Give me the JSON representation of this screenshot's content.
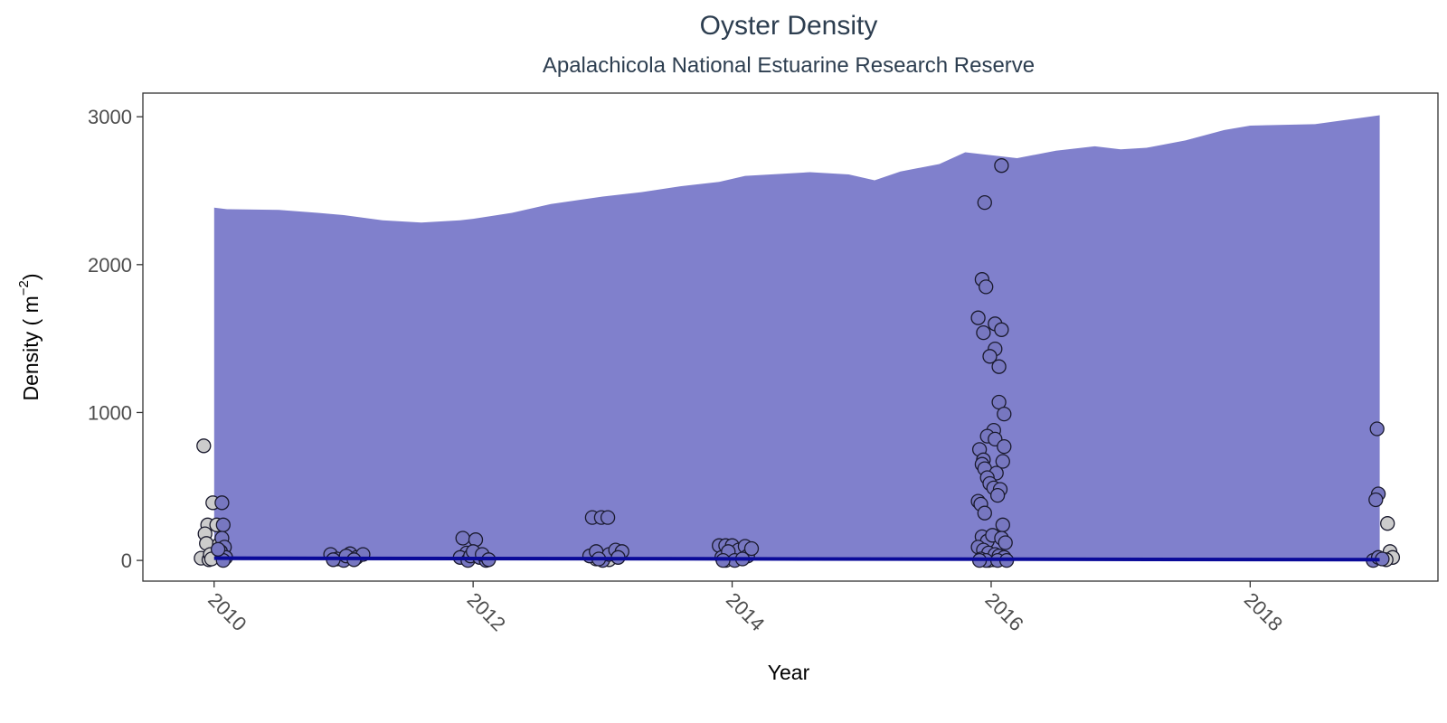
{
  "chart_data": {
    "type": "scatter",
    "title": "Oyster Density",
    "subtitle": "Apalachicola National Estuarine Research Reserve",
    "xlabel": "Year",
    "ylabel": "Density ( m",
    "ylabel_superscript": "−2",
    "ylabel_close": ")",
    "xlim": [
      2009.45,
      2019.45
    ],
    "ylim": [
      -140,
      3160
    ],
    "x_ticks": [
      2010,
      2012,
      2014,
      2016,
      2018
    ],
    "x_tick_labels": [
      "2010",
      "2012",
      "2014",
      "2016",
      "2018"
    ],
    "y_ticks": [
      0,
      1000,
      2000,
      3000
    ],
    "y_tick_labels": [
      "0",
      "1000",
      "2000",
      "3000"
    ],
    "grid": false,
    "legend": "none",
    "colors": {
      "band": "#8080cc",
      "trend": "#0a0a99",
      "point_fill_blue": "#7777c0",
      "point_fill_gray": "#cccccc",
      "point_stroke": "#1a1a2e",
      "frame": "#333333",
      "text": "#2d3e50"
    },
    "upper_band": {
      "x": [
        2010.0,
        2010.1,
        2010.5,
        2010.8,
        2011.0,
        2011.3,
        2011.6,
        2011.9,
        2012.0,
        2012.3,
        2012.6,
        2013.0,
        2013.3,
        2013.6,
        2013.9,
        2014.1,
        2014.3,
        2014.6,
        2014.9,
        2015.1,
        2015.3,
        2015.6,
        2015.8,
        2016.0,
        2016.2,
        2016.5,
        2016.8,
        2017.0,
        2017.2,
        2017.5,
        2017.8,
        2018.0,
        2018.5,
        2019.0
      ],
      "y": [
        2385,
        2375,
        2370,
        2350,
        2335,
        2300,
        2285,
        2300,
        2310,
        2350,
        2410,
        2460,
        2490,
        2530,
        2560,
        2600,
        2610,
        2625,
        2610,
        2570,
        2630,
        2680,
        2760,
        2740,
        2720,
        2770,
        2800,
        2780,
        2790,
        2840,
        2910,
        2940,
        2950,
        3010
      ]
    },
    "lower_band": {
      "x": [
        2010.0,
        2019.0
      ],
      "y": [
        0,
        0
      ]
    },
    "trend_line": {
      "x": [
        2010.0,
        2019.0
      ],
      "y": [
        15,
        5
      ]
    },
    "series": [
      {
        "name": "",
        "color": "#cccccc",
        "points": [
          [
            2009.92,
            775
          ],
          [
            2009.95,
            240
          ],
          [
            2009.93,
            180
          ],
          [
            2009.94,
            115
          ],
          [
            2009.9,
            15
          ],
          [
            2009.96,
            5
          ],
          [
            2009.97,
            40
          ],
          [
            2009.99,
            390
          ],
          [
            2010.02,
            240
          ],
          [
            2010.04,
            110
          ],
          [
            2010.05,
            30
          ],
          [
            2009.98,
            10
          ],
          [
            2012.95,
            10
          ],
          [
            2013.05,
            5
          ],
          [
            2013.95,
            0
          ],
          [
            2014.0,
            30
          ],
          [
            2016.02,
            5
          ],
          [
            2015.98,
            0
          ],
          [
            2019.06,
            250
          ],
          [
            2019.08,
            60
          ],
          [
            2019.1,
            20
          ],
          [
            2019.05,
            5
          ]
        ]
      },
      {
        "name": "",
        "color": "#7777c0",
        "points": [
          [
            2010.06,
            390
          ],
          [
            2010.07,
            240
          ],
          [
            2010.06,
            150
          ],
          [
            2010.08,
            90
          ],
          [
            2010.05,
            60
          ],
          [
            2010.09,
            20
          ],
          [
            2010.07,
            0
          ],
          [
            2010.03,
            75
          ],
          [
            2010.9,
            40
          ],
          [
            2010.95,
            10
          ],
          [
            2011.0,
            0
          ],
          [
            2011.05,
            45
          ],
          [
            2011.1,
            20
          ],
          [
            2011.15,
            40
          ],
          [
            2011.02,
            30
          ],
          [
            2010.92,
            5
          ],
          [
            2011.08,
            5
          ],
          [
            2011.92,
            150
          ],
          [
            2011.95,
            50
          ],
          [
            2011.9,
            20
          ],
          [
            2011.96,
            0
          ],
          [
            2011.98,
            30
          ],
          [
            2012.02,
            140
          ],
          [
            2012.05,
            20
          ],
          [
            2012.1,
            0
          ],
          [
            2012.0,
            60
          ],
          [
            2012.07,
            40
          ],
          [
            2012.12,
            5
          ],
          [
            2012.92,
            290
          ],
          [
            2012.99,
            290
          ],
          [
            2013.04,
            290
          ],
          [
            2012.9,
            30
          ],
          [
            2012.95,
            60
          ],
          [
            2013.0,
            0
          ],
          [
            2013.05,
            40
          ],
          [
            2013.1,
            70
          ],
          [
            2013.15,
            60
          ],
          [
            2013.12,
            20
          ],
          [
            2012.97,
            10
          ],
          [
            2013.9,
            100
          ],
          [
            2013.95,
            100
          ],
          [
            2014.0,
            100
          ],
          [
            2014.05,
            70
          ],
          [
            2014.1,
            95
          ],
          [
            2014.12,
            30
          ],
          [
            2013.92,
            20
          ],
          [
            2013.97,
            60
          ],
          [
            2014.02,
            0
          ],
          [
            2014.08,
            10
          ],
          [
            2014.15,
            80
          ],
          [
            2013.93,
            0
          ],
          [
            2016.08,
            2670
          ],
          [
            2015.95,
            2420
          ],
          [
            2015.93,
            1900
          ],
          [
            2015.96,
            1850
          ],
          [
            2015.9,
            1640
          ],
          [
            2016.03,
            1600
          ],
          [
            2016.08,
            1560
          ],
          [
            2015.94,
            1540
          ],
          [
            2016.03,
            1430
          ],
          [
            2015.99,
            1380
          ],
          [
            2016.06,
            1310
          ],
          [
            2016.06,
            1070
          ],
          [
            2016.1,
            990
          ],
          [
            2016.02,
            880
          ],
          [
            2015.97,
            840
          ],
          [
            2016.03,
            820
          ],
          [
            2016.1,
            770
          ],
          [
            2015.91,
            750
          ],
          [
            2015.94,
            680
          ],
          [
            2016.09,
            670
          ],
          [
            2015.93,
            650
          ],
          [
            2015.95,
            620
          ],
          [
            2016.04,
            590
          ],
          [
            2015.97,
            560
          ],
          [
            2015.99,
            520
          ],
          [
            2016.02,
            490
          ],
          [
            2016.07,
            480
          ],
          [
            2016.05,
            440
          ],
          [
            2015.9,
            400
          ],
          [
            2015.92,
            380
          ],
          [
            2015.95,
            320
          ],
          [
            2016.09,
            240
          ],
          [
            2015.93,
            160
          ],
          [
            2015.97,
            130
          ],
          [
            2016.01,
            170
          ],
          [
            2016.08,
            150
          ],
          [
            2016.11,
            120
          ],
          [
            2015.9,
            90
          ],
          [
            2015.94,
            70
          ],
          [
            2015.98,
            50
          ],
          [
            2016.03,
            40
          ],
          [
            2016.06,
            30
          ],
          [
            2016.1,
            20
          ],
          [
            2015.92,
            10
          ],
          [
            2015.96,
            0
          ],
          [
            2016.05,
            0
          ],
          [
            2016.12,
            0
          ],
          [
            2015.91,
            0
          ],
          [
            2018.98,
            890
          ],
          [
            2018.99,
            450
          ],
          [
            2018.97,
            410
          ],
          [
            2018.95,
            0
          ],
          [
            2018.99,
            20
          ],
          [
            2019.02,
            10
          ]
        ]
      }
    ]
  }
}
